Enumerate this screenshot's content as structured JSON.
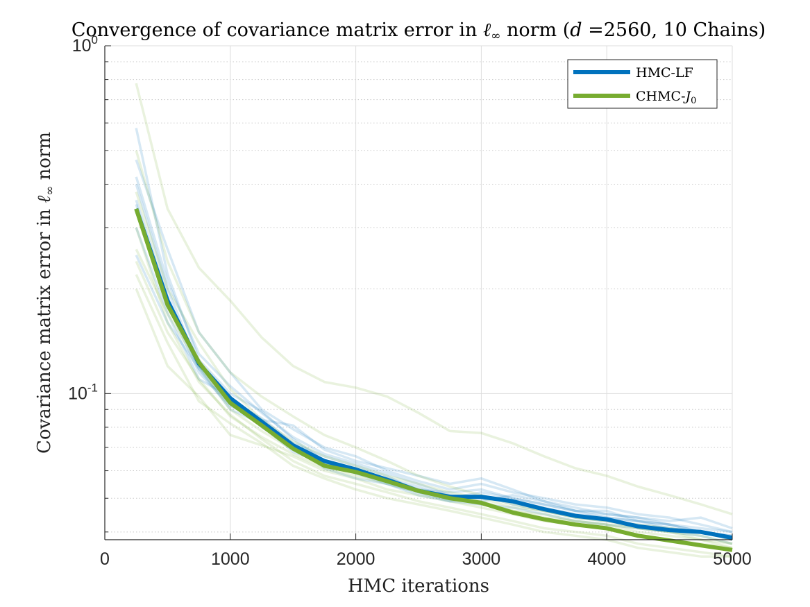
{
  "chart_data": {
    "type": "line",
    "title_prefix": "Convergence of covariance matrix error in ",
    "title_norm": "ℓ",
    "title_norm_sub": "∞",
    "title_middle": " norm (",
    "title_d": "d",
    "title_suffix": " =2560, 10 Chains)",
    "xlabel": "HMC iterations",
    "ylabel_prefix": "Covariance matrix error in ",
    "ylabel_norm": "ℓ",
    "ylabel_norm_sub": "∞",
    "ylabel_suffix": " norm",
    "xlim": [
      0,
      5000
    ],
    "ylim": [
      0.038,
      1.0
    ],
    "yscale": "log",
    "grid": true,
    "legend_position": "top-right",
    "x_ticks": [
      0,
      1000,
      2000,
      3000,
      4000,
      5000
    ],
    "x_tick_labels": [
      "0",
      "1000",
      "2000",
      "3000",
      "4000",
      "5000"
    ],
    "y_ticks": [
      {
        "value": 0.1,
        "base": "10",
        "exp": "-1"
      },
      {
        "value": 1.0,
        "base": "10",
        "exp": "0"
      }
    ],
    "x": [
      250,
      500,
      750,
      1000,
      1250,
      1500,
      1750,
      2000,
      2250,
      2500,
      2750,
      3000,
      3250,
      3500,
      3750,
      4000,
      4250,
      4500,
      4750,
      5000
    ],
    "series": [
      {
        "name": "HMC-LF",
        "color": "#0072BD",
        "values": [
          0.34,
          0.185,
          0.122,
          0.097,
          0.083,
          0.071,
          0.064,
          0.0605,
          0.0565,
          0.0525,
          0.0505,
          0.0505,
          0.049,
          0.0465,
          0.0445,
          0.0435,
          0.0415,
          0.0405,
          0.04,
          0.0385
        ]
      },
      {
        "name": "CHMC-",
        "name_symbol": "J",
        "name_sub": "0",
        "color": "#77AC30",
        "values": [
          0.34,
          0.18,
          0.123,
          0.094,
          0.081,
          0.0695,
          0.062,
          0.0595,
          0.056,
          0.0525,
          0.05,
          0.0485,
          0.0455,
          0.0435,
          0.042,
          0.041,
          0.039,
          0.0378,
          0.0366,
          0.0355
        ]
      }
    ],
    "faint_series": [
      {
        "name": "HMC-LF chain 1",
        "color": "#0072BD",
        "values": [
          0.58,
          0.22,
          0.125,
          0.1,
          0.089,
          0.074,
          0.064,
          0.06,
          0.057,
          0.054,
          0.05,
          0.052,
          0.05,
          0.048,
          0.046,
          0.046,
          0.043,
          0.041,
          0.04,
          0.039
        ]
      },
      {
        "name": "HMC-LF chain 2",
        "color": "#0072BD",
        "values": [
          0.47,
          0.26,
          0.15,
          0.115,
          0.09,
          0.079,
          0.07,
          0.066,
          0.06,
          0.056,
          0.053,
          0.055,
          0.052,
          0.05,
          0.048,
          0.047,
          0.045,
          0.044,
          0.042,
          0.04
        ]
      },
      {
        "name": "HMC-LF chain 3",
        "color": "#0072BD",
        "values": [
          0.4,
          0.2,
          0.12,
          0.095,
          0.085,
          0.072,
          0.066,
          0.062,
          0.058,
          0.052,
          0.05,
          0.049,
          0.051,
          0.049,
          0.047,
          0.045,
          0.044,
          0.043,
          0.044,
          0.041
        ]
      },
      {
        "name": "HMC-LF chain 4",
        "color": "#0072BD",
        "values": [
          0.35,
          0.18,
          0.115,
          0.092,
          0.084,
          0.081,
          0.069,
          0.064,
          0.061,
          0.058,
          0.055,
          0.057,
          0.053,
          0.049,
          0.046,
          0.044,
          0.043,
          0.042,
          0.04,
          0.038
        ]
      },
      {
        "name": "HMC-LF chain 5",
        "color": "#0072BD",
        "values": [
          0.3,
          0.17,
          0.11,
          0.098,
          0.08,
          0.07,
          0.063,
          0.059,
          0.055,
          0.051,
          0.049,
          0.048,
          0.047,
          0.045,
          0.043,
          0.042,
          0.041,
          0.04,
          0.039,
          0.037
        ]
      },
      {
        "name": "HMC-LF chain 6",
        "color": "#0072BD",
        "values": [
          0.25,
          0.16,
          0.118,
          0.093,
          0.081,
          0.068,
          0.063,
          0.059,
          0.056,
          0.053,
          0.052,
          0.053,
          0.05,
          0.048,
          0.046,
          0.045,
          0.044,
          0.042,
          0.04,
          0.039
        ]
      },
      {
        "name": "HMC-LF chain 7",
        "color": "#0072BD",
        "values": [
          0.42,
          0.21,
          0.13,
          0.105,
          0.088,
          0.075,
          0.067,
          0.063,
          0.059,
          0.055,
          0.051,
          0.05,
          0.049,
          0.047,
          0.045,
          0.044,
          0.043,
          0.042,
          0.041,
          0.04
        ]
      },
      {
        "name": "HMC-LF chain 8",
        "color": "#0072BD",
        "values": [
          0.36,
          0.19,
          0.118,
          0.09,
          0.082,
          0.071,
          0.061,
          0.057,
          0.055,
          0.052,
          0.049,
          0.051,
          0.048,
          0.046,
          0.044,
          0.043,
          0.042,
          0.041,
          0.04,
          0.038
        ]
      },
      {
        "name": "CHMC-J0 chain 1",
        "color": "#77AC30",
        "values": [
          0.78,
          0.34,
          0.23,
          0.185,
          0.145,
          0.12,
          0.108,
          0.104,
          0.098,
          0.088,
          0.078,
          0.077,
          0.072,
          0.066,
          0.061,
          0.058,
          0.054,
          0.051,
          0.048,
          0.045
        ]
      },
      {
        "name": "CHMC-J0 chain 2",
        "color": "#77AC30",
        "values": [
          0.5,
          0.24,
          0.15,
          0.115,
          0.098,
          0.086,
          0.076,
          0.07,
          0.064,
          0.058,
          0.054,
          0.051,
          0.048,
          0.046,
          0.044,
          0.043,
          0.041,
          0.04,
          0.038,
          0.036
        ]
      },
      {
        "name": "CHMC-J0 chain 3",
        "color": "#77AC30",
        "values": [
          0.3,
          0.16,
          0.108,
          0.087,
          0.074,
          0.064,
          0.058,
          0.055,
          0.052,
          0.049,
          0.047,
          0.045,
          0.043,
          0.041,
          0.04,
          0.039,
          0.037,
          0.036,
          0.035,
          0.034
        ]
      },
      {
        "name": "CHMC-J0 chain 4",
        "color": "#77AC30",
        "values": [
          0.22,
          0.14,
          0.095,
          0.082,
          0.072,
          0.062,
          0.057,
          0.053,
          0.05,
          0.048,
          0.046,
          0.044,
          0.042,
          0.04,
          0.039,
          0.038,
          0.036,
          0.035,
          0.034,
          0.034
        ]
      },
      {
        "name": "CHMC-J0 chain 5",
        "color": "#77AC30",
        "values": [
          0.2,
          0.12,
          0.098,
          0.076,
          0.071,
          0.066,
          0.06,
          0.057,
          0.053,
          0.051,
          0.049,
          0.047,
          0.045,
          0.043,
          0.042,
          0.041,
          0.039,
          0.038,
          0.037,
          0.036
        ]
      },
      {
        "name": "CHMC-J0 chain 6",
        "color": "#77AC30",
        "values": [
          0.26,
          0.17,
          0.12,
          0.09,
          0.078,
          0.069,
          0.063,
          0.06,
          0.057,
          0.053,
          0.051,
          0.049,
          0.046,
          0.044,
          0.043,
          0.042,
          0.04,
          0.039,
          0.038,
          0.037
        ]
      },
      {
        "name": "CHMC-J0 chain 7",
        "color": "#77AC30",
        "values": [
          0.24,
          0.15,
          0.11,
          0.086,
          0.075,
          0.067,
          0.061,
          0.058,
          0.055,
          0.052,
          0.05,
          0.048,
          0.046,
          0.045,
          0.043,
          0.042,
          0.041,
          0.04,
          0.039,
          0.037
        ]
      },
      {
        "name": "CHMC-J0 chain 8",
        "color": "#77AC30",
        "values": [
          0.38,
          0.2,
          0.14,
          0.103,
          0.084,
          0.073,
          0.066,
          0.062,
          0.058,
          0.055,
          0.052,
          0.05,
          0.047,
          0.046,
          0.044,
          0.043,
          0.042,
          0.041,
          0.04,
          0.038
        ]
      }
    ]
  }
}
